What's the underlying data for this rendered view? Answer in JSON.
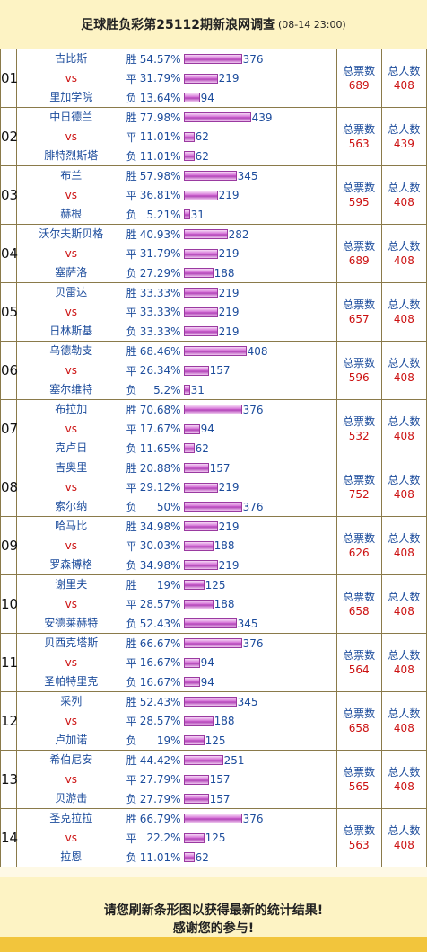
{
  "title": "足球胜负彩第25112期新浪网调查",
  "time": "(08-14 23:00)",
  "vs_text": "vs",
  "stat_labels": {
    "tickets": "总票数",
    "people": "总人数"
  },
  "matches": [
    {
      "idx": "01",
      "home": "古比斯",
      "away": "里加学院",
      "opts": [
        {
          "label": "胜",
          "pct": "54.57%",
          "count": 376
        },
        {
          "label": "平",
          "pct": "31.79%",
          "count": 219
        },
        {
          "label": "负",
          "pct": "13.64%",
          "count": 94
        }
      ],
      "tickets": "689",
      "people": "408"
    },
    {
      "idx": "02",
      "home": "中日德兰",
      "away": "腓特烈斯塔",
      "opts": [
        {
          "label": "胜",
          "pct": "77.98%",
          "count": 439
        },
        {
          "label": "平",
          "pct": "11.01%",
          "count": 62
        },
        {
          "label": "负",
          "pct": "11.01%",
          "count": 62
        }
      ],
      "tickets": "563",
      "people": "439"
    },
    {
      "idx": "03",
      "home": "布兰",
      "away": "赫根",
      "opts": [
        {
          "label": "胜",
          "pct": "57.98%",
          "count": 345
        },
        {
          "label": "平",
          "pct": "36.81%",
          "count": 219
        },
        {
          "label": "负",
          "pct": "5.21%",
          "count": 31
        }
      ],
      "tickets": "595",
      "people": "408"
    },
    {
      "idx": "04",
      "home": "沃尔夫斯贝格",
      "away": "塞萨洛",
      "opts": [
        {
          "label": "胜",
          "pct": "40.93%",
          "count": 282
        },
        {
          "label": "平",
          "pct": "31.79%",
          "count": 219
        },
        {
          "label": "负",
          "pct": "27.29%",
          "count": 188
        }
      ],
      "tickets": "689",
      "people": "408"
    },
    {
      "idx": "05",
      "home": "贝雷达",
      "away": "日林斯基",
      "opts": [
        {
          "label": "胜",
          "pct": "33.33%",
          "count": 219
        },
        {
          "label": "平",
          "pct": "33.33%",
          "count": 219
        },
        {
          "label": "负",
          "pct": "33.33%",
          "count": 219
        }
      ],
      "tickets": "657",
      "people": "408"
    },
    {
      "idx": "06",
      "home": "乌德勒支",
      "away": "塞尔维特",
      "opts": [
        {
          "label": "胜",
          "pct": "68.46%",
          "count": 408
        },
        {
          "label": "平",
          "pct": "26.34%",
          "count": 157
        },
        {
          "label": "负",
          "pct": "5.2%",
          "count": 31
        }
      ],
      "tickets": "596",
      "people": "408"
    },
    {
      "idx": "07",
      "home": "布拉加",
      "away": "克卢日",
      "opts": [
        {
          "label": "胜",
          "pct": "70.68%",
          "count": 376
        },
        {
          "label": "平",
          "pct": "17.67%",
          "count": 94
        },
        {
          "label": "负",
          "pct": "11.65%",
          "count": 62
        }
      ],
      "tickets": "532",
      "people": "408"
    },
    {
      "idx": "08",
      "home": "吉奥里",
      "away": "索尔纳",
      "opts": [
        {
          "label": "胜",
          "pct": "20.88%",
          "count": 157
        },
        {
          "label": "平",
          "pct": "29.12%",
          "count": 219
        },
        {
          "label": "负",
          "pct": "50%",
          "count": 376
        }
      ],
      "tickets": "752",
      "people": "408"
    },
    {
      "idx": "09",
      "home": "哈马比",
      "away": "罗森博格",
      "opts": [
        {
          "label": "胜",
          "pct": "34.98%",
          "count": 219
        },
        {
          "label": "平",
          "pct": "30.03%",
          "count": 188
        },
        {
          "label": "负",
          "pct": "34.98%",
          "count": 219
        }
      ],
      "tickets": "626",
      "people": "408"
    },
    {
      "idx": "10",
      "home": "谢里夫",
      "away": "安德莱赫特",
      "opts": [
        {
          "label": "胜",
          "pct": "19%",
          "count": 125
        },
        {
          "label": "平",
          "pct": "28.57%",
          "count": 188
        },
        {
          "label": "负",
          "pct": "52.43%",
          "count": 345
        }
      ],
      "tickets": "658",
      "people": "408"
    },
    {
      "idx": "11",
      "home": "贝西克塔斯",
      "away": "圣帕特里克",
      "opts": [
        {
          "label": "胜",
          "pct": "66.67%",
          "count": 376
        },
        {
          "label": "平",
          "pct": "16.67%",
          "count": 94
        },
        {
          "label": "负",
          "pct": "16.67%",
          "count": 94
        }
      ],
      "tickets": "564",
      "people": "408"
    },
    {
      "idx": "12",
      "home": "采列",
      "away": "卢加诺",
      "opts": [
        {
          "label": "胜",
          "pct": "52.43%",
          "count": 345
        },
        {
          "label": "平",
          "pct": "28.57%",
          "count": 188
        },
        {
          "label": "负",
          "pct": "19%",
          "count": 125
        }
      ],
      "tickets": "658",
      "people": "408"
    },
    {
      "idx": "13",
      "home": "希伯尼安",
      "away": "贝游击",
      "opts": [
        {
          "label": "胜",
          "pct": "44.42%",
          "count": 251
        },
        {
          "label": "平",
          "pct": "27.79%",
          "count": 157
        },
        {
          "label": "负",
          "pct": "27.79%",
          "count": 157
        }
      ],
      "tickets": "565",
      "people": "408"
    },
    {
      "idx": "14",
      "home": "圣克拉拉",
      "away": "拉恩",
      "opts": [
        {
          "label": "胜",
          "pct": "66.79%",
          "count": 376
        },
        {
          "label": "平",
          "pct": "22.2%",
          "count": 125
        },
        {
          "label": "负",
          "pct": "11.01%",
          "count": 62
        }
      ],
      "tickets": "563",
      "people": "408"
    }
  ],
  "footer": {
    "line1": "请您刷新条形图以获得最新的统计结果!",
    "line2": "感谢您的参与!"
  }
}
